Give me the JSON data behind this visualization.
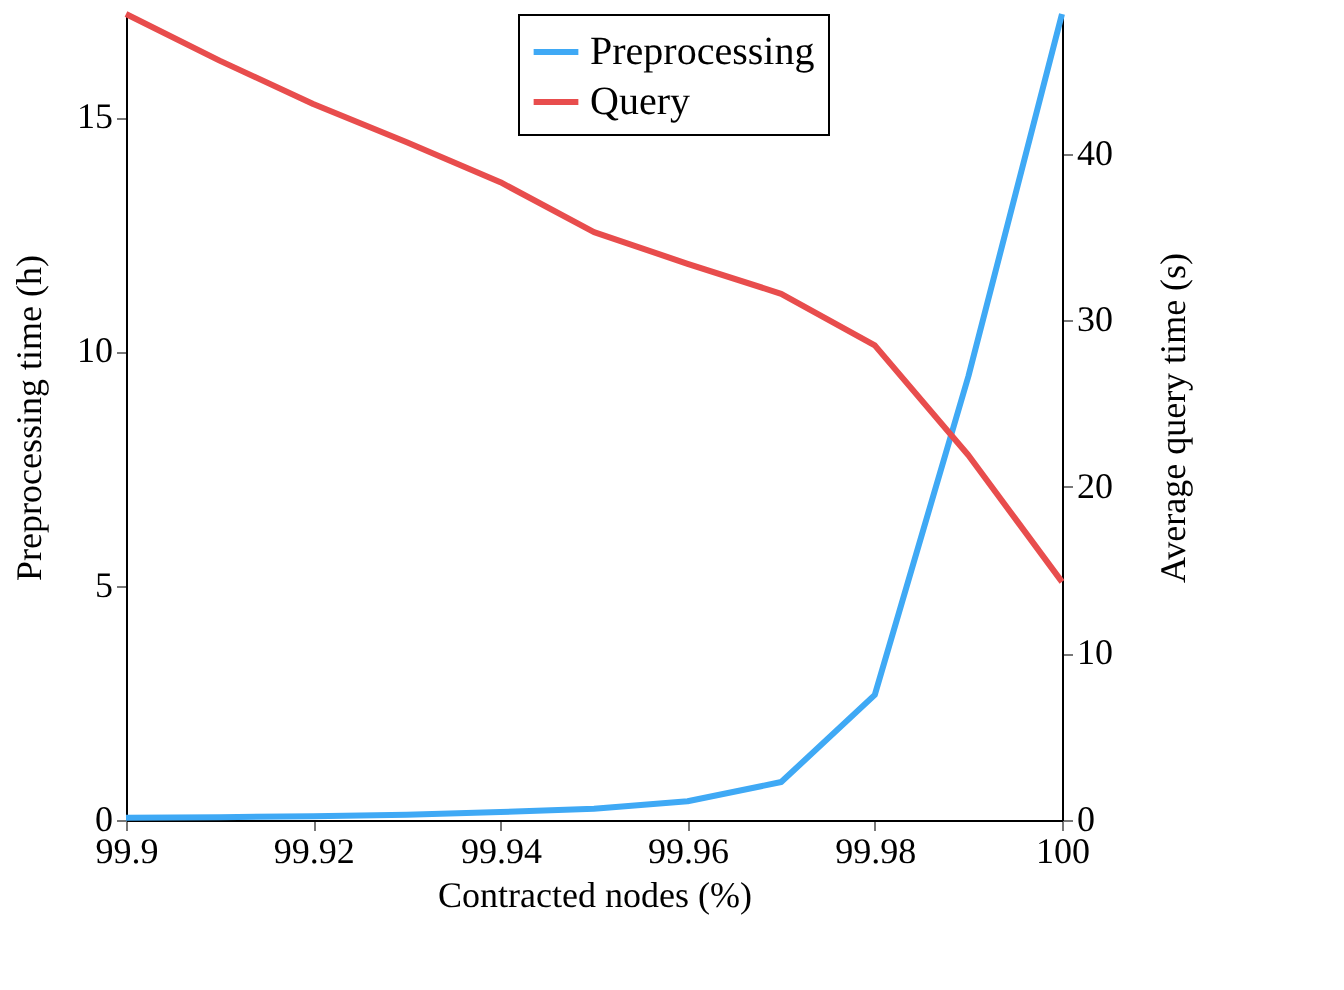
{
  "chart_data": {
    "type": "line",
    "xlabel": "Contracted nodes (%)",
    "ylabel": "Preprocessing time (h)",
    "y2label": "Average query time (s)",
    "x": [
      99.9,
      99.91,
      99.92,
      99.93,
      99.94,
      99.95,
      99.96,
      99.97,
      99.98,
      99.99,
      100
    ],
    "xlim": [
      99.9,
      100
    ],
    "xticks": [
      99.9,
      99.92,
      99.94,
      99.96,
      99.98,
      100
    ],
    "ylim": [
      0,
      17.2
    ],
    "yticks": [
      0,
      5,
      10,
      15
    ],
    "y2lim": [
      0,
      48.4
    ],
    "y2ticks": [
      0,
      10,
      20,
      30,
      40
    ],
    "series": [
      {
        "name": "Preprocessing",
        "color": "#3fa9f5",
        "values": [
          0.05,
          0.06,
          0.08,
          0.11,
          0.17,
          0.24,
          0.4,
          0.81,
          2.67,
          9.47,
          17.2
        ]
      },
      {
        "name": "Query",
        "color": "#e84d4d",
        "axis": "y2",
        "values": [
          48.4,
          45.6,
          43.0,
          40.7,
          38.3,
          35.3,
          33.4,
          31.6,
          28.5,
          21.9,
          14.3
        ]
      }
    ],
    "legend": "top right",
    "grid": false,
    "marker": "none",
    "line_style": "solid"
  }
}
